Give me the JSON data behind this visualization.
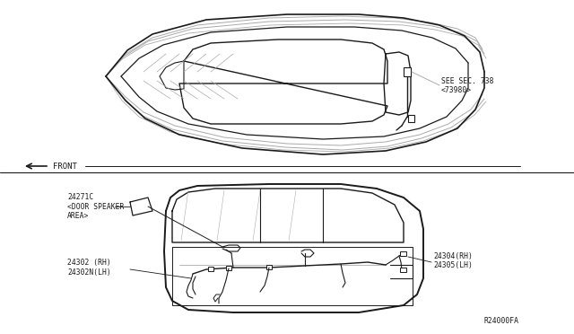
{
  "bg_color": "#ffffff",
  "line_color": "#1a1a1a",
  "gray_color": "#777777",
  "light_gray": "#aaaaaa",
  "dark_gray": "#444444",
  "label_see_sec": "SEE SEC. 738",
  "label_73980": "<73980>",
  "label_front": "FRONT",
  "label_24271c": "24271C",
  "label_door_speaker_1": "<DOOR SPEAKER",
  "label_door_speaker_2": "AREA>",
  "label_24302": "24302 (RH)",
  "label_24302n": "24302N(LH)",
  "label_24304": "24304(RH)",
  "label_24305": "24305(LH)",
  "label_r24000fa": "R24000FA",
  "font_size_main": 6.2,
  "font_size_small": 5.8
}
